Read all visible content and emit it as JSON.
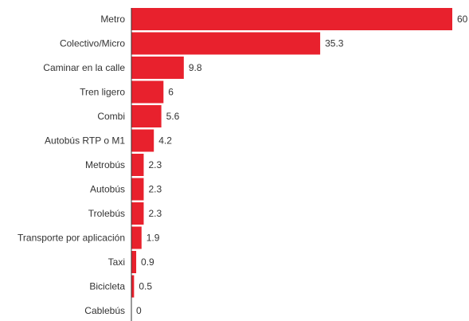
{
  "chart_data": {
    "type": "bar",
    "orientation": "horizontal",
    "title": "",
    "xlabel": "",
    "ylabel": "",
    "categories": [
      "Metro",
      "Colectivo/Micro",
      "Caminar en la calle",
      "Tren ligero",
      "Combi",
      "Autobús RTP o M1",
      "Metrobús",
      "Autobús",
      "Trolebús",
      "Transporte por aplicación",
      "Taxi",
      "Bicicleta",
      "Cablebús"
    ],
    "values": [
      60,
      35.3,
      9.8,
      6,
      5.6,
      4.2,
      2.3,
      2.3,
      2.3,
      1.9,
      0.9,
      0.5,
      0
    ],
    "value_labels": [
      "60",
      "35.3",
      "9.8",
      "6",
      "5.6",
      "4.2",
      "2.3",
      "2.3",
      "2.3",
      "1.9",
      "0.9",
      "0.5",
      "0"
    ],
    "xlim": [
      0,
      60
    ],
    "grid": false,
    "legend": "none",
    "colors": {
      "bar": "#e8212d",
      "axis": "#333333",
      "text": "#333333"
    }
  }
}
